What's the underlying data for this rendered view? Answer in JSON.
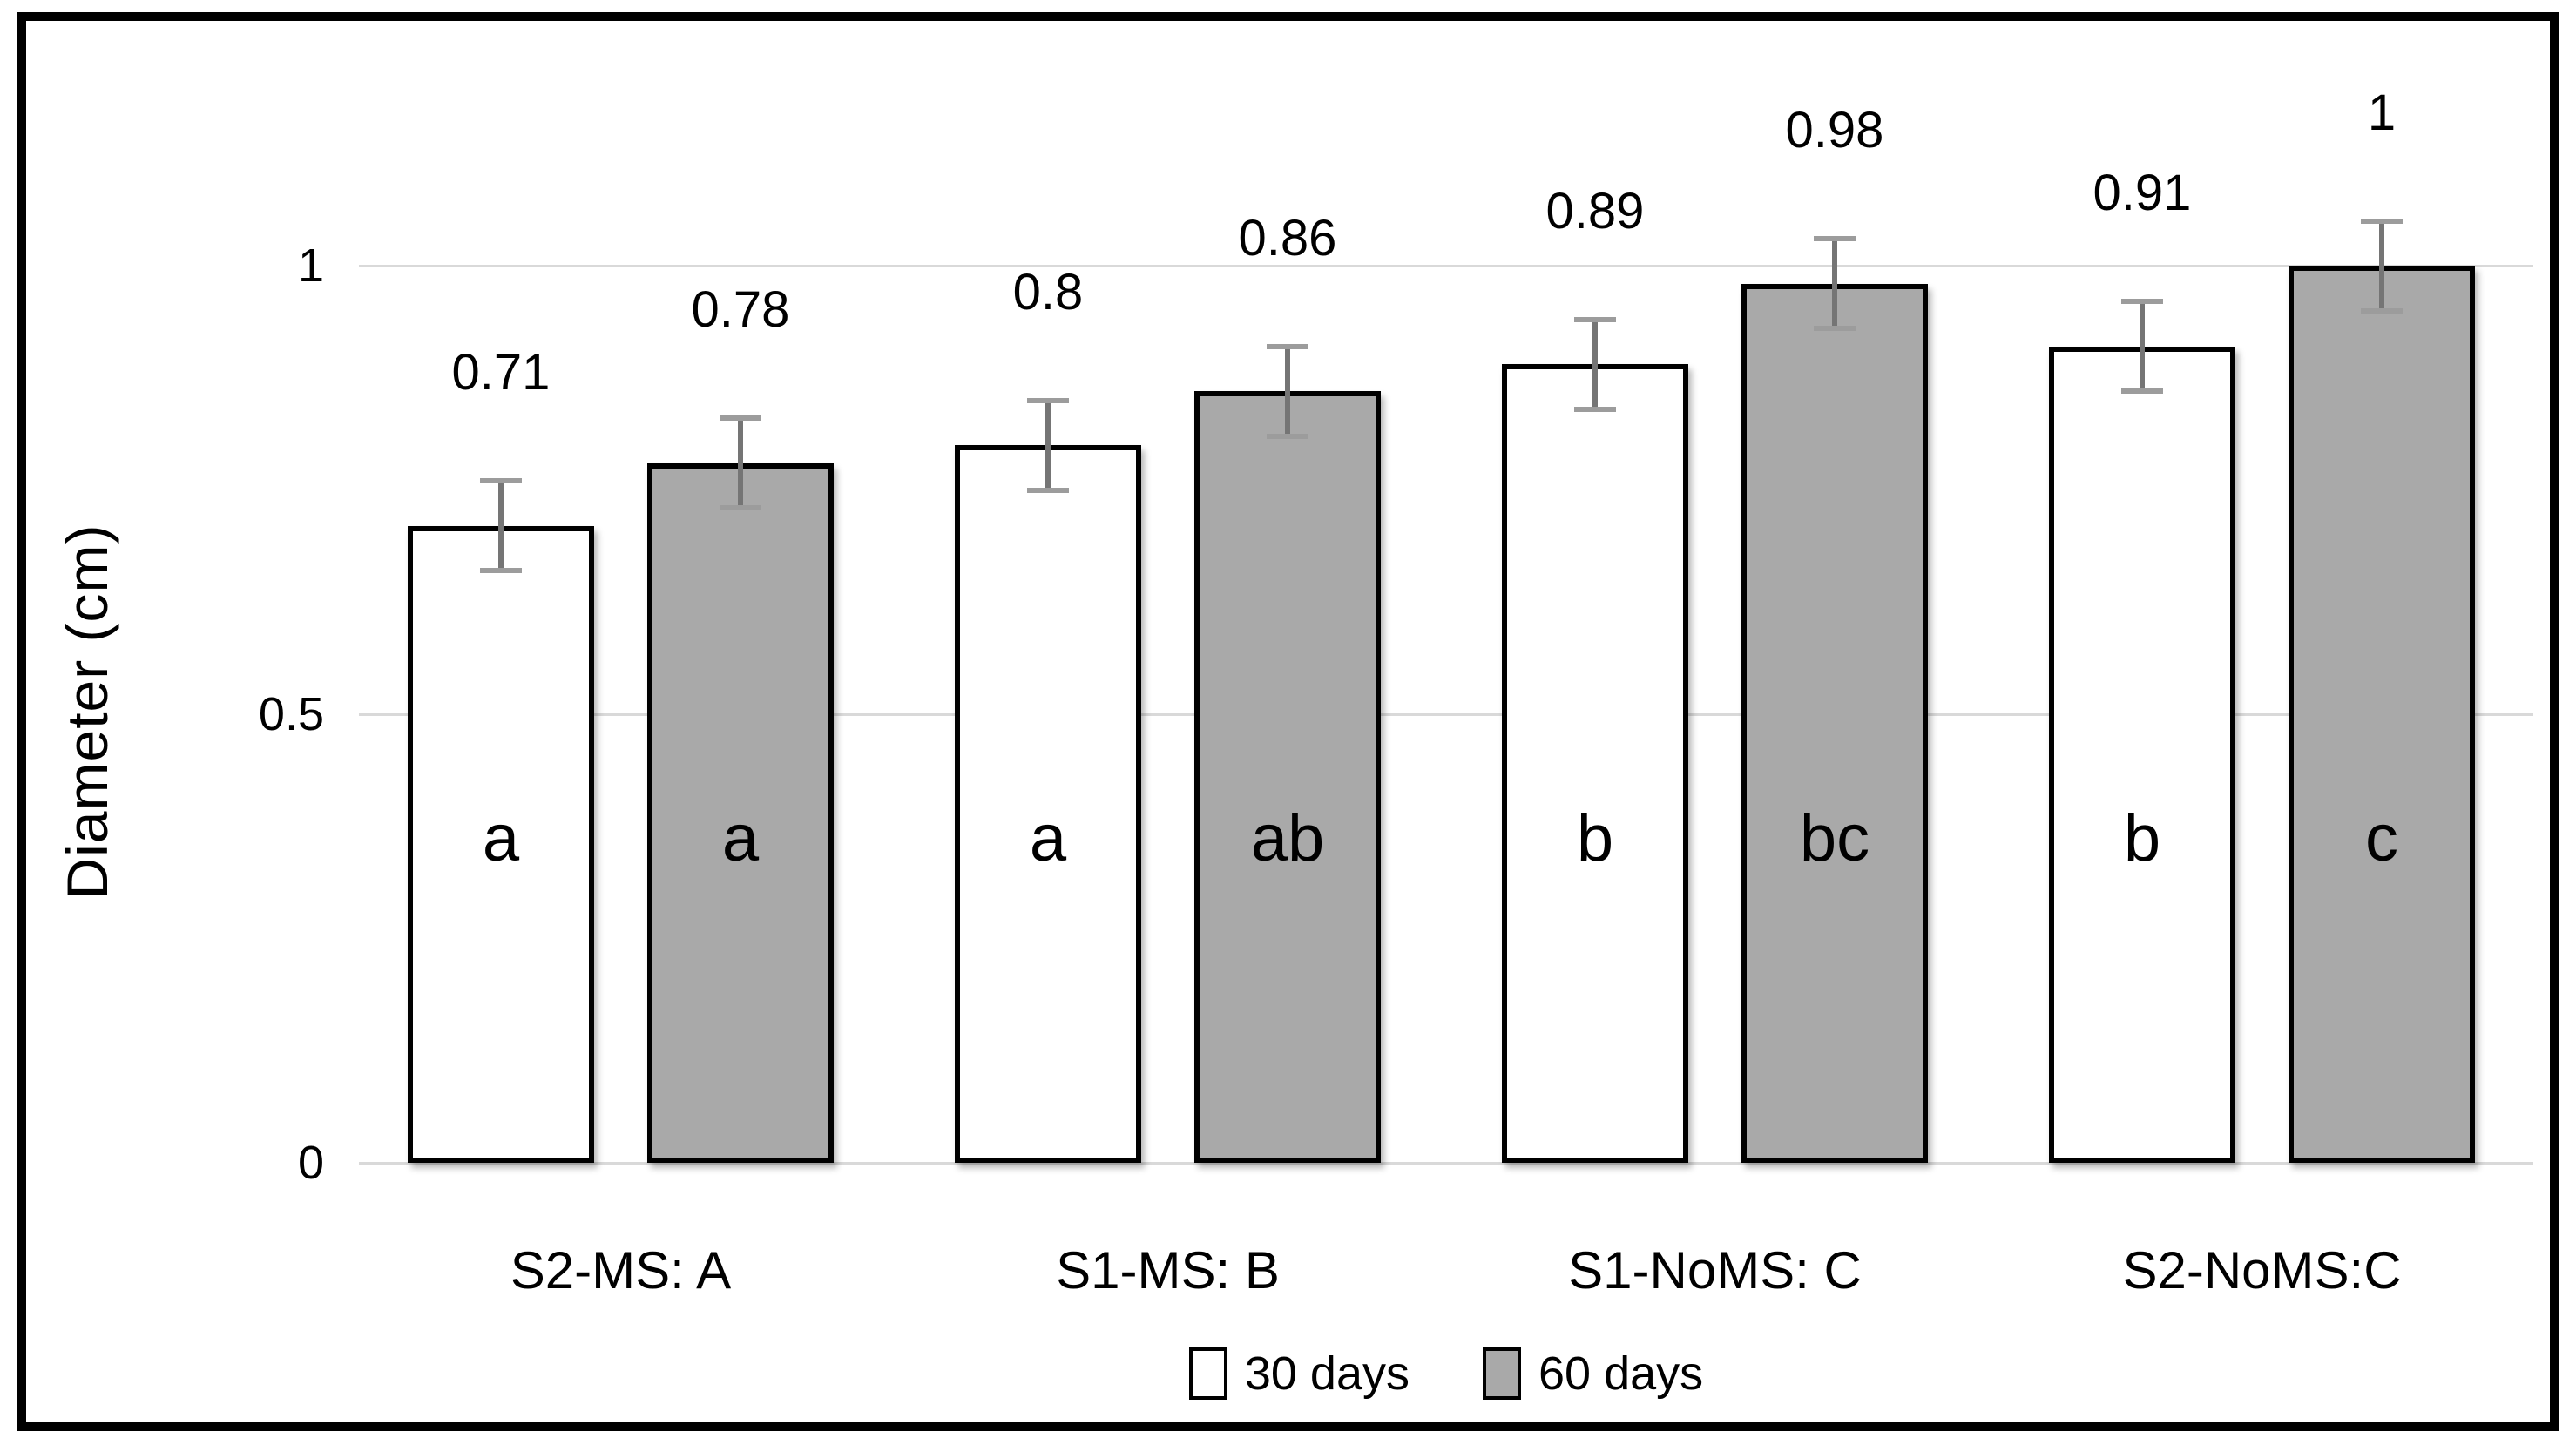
{
  "figure": {
    "background": "#ffffff",
    "frame_color": "#000000"
  },
  "chart_data": {
    "type": "bar",
    "title": "",
    "xlabel": "",
    "ylabel": "Diameter (cm)",
    "ylim": [
      0,
      1.16
    ],
    "grid": true,
    "legend_position": "bottom-center",
    "yticks": [
      0,
      0.5,
      1
    ],
    "ytick_labels": [
      "0",
      "0.5",
      "1"
    ],
    "categories": [
      "S2-MS: A",
      "S1-MS: B",
      "S1-NoMS: C",
      "S2-NoMS:C"
    ],
    "series": [
      {
        "name": "30 days",
        "fill": "#ffffff",
        "values": [
          0.71,
          0.8,
          0.89,
          0.91
        ],
        "value_labels": [
          "0.71",
          "0.8",
          "0.89",
          "0.91"
        ],
        "errors": [
          0.05,
          0.05,
          0.05,
          0.05
        ],
        "letters": [
          "a",
          "a",
          "b",
          "b"
        ]
      },
      {
        "name": "60 days",
        "fill": "#a9a9a9",
        "values": [
          0.78,
          0.86,
          0.98,
          1
        ],
        "value_labels": [
          "0.78",
          "0.86",
          "0.98",
          "1"
        ],
        "errors": [
          0.05,
          0.05,
          0.05,
          0.05
        ],
        "letters": [
          "a",
          "ab",
          "bc",
          "c"
        ]
      }
    ],
    "colors": {
      "bar_border": "#000000",
      "gridline": "#d9d9d9",
      "error_line": "#757575",
      "error_cap": "#9c9c9c",
      "text": "#000000"
    }
  }
}
